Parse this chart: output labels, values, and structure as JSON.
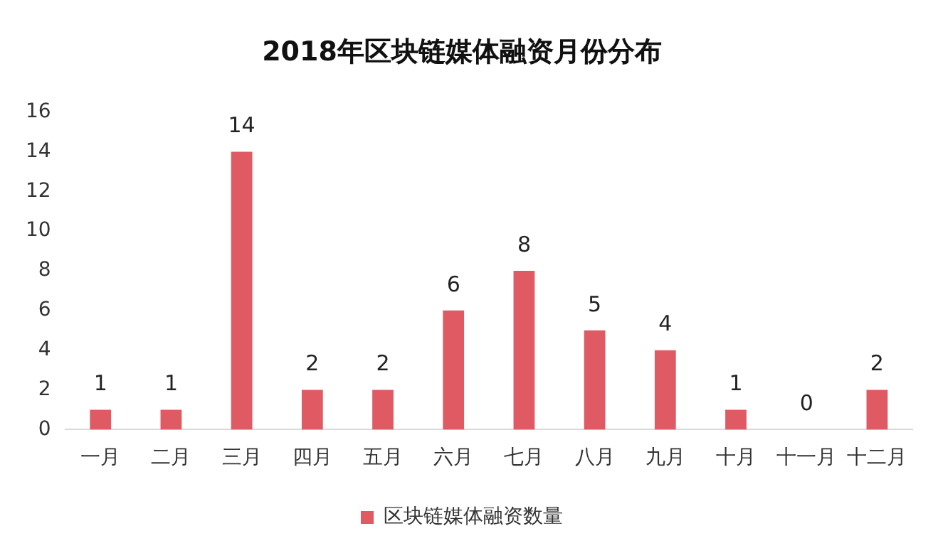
{
  "chart_data": {
    "type": "bar",
    "title": "2018年区块链媒体融资月份分布",
    "categories": [
      "一月",
      "二月",
      "三月",
      "四月",
      "五月",
      "六月",
      "七月",
      "八月",
      "九月",
      "十月",
      "十一月",
      "十二月"
    ],
    "series": [
      {
        "name": "区块链媒体融资数量",
        "color": "#e05a64",
        "values": [
          1,
          1,
          14,
          2,
          2,
          6,
          8,
          5,
          4,
          1,
          0,
          2
        ]
      }
    ],
    "ylim": [
      0,
      16
    ],
    "yticks": [
      0,
      2,
      4,
      6,
      8,
      10,
      12,
      14,
      16
    ],
    "grid": false,
    "legend": "bottom",
    "data_labels": true
  }
}
